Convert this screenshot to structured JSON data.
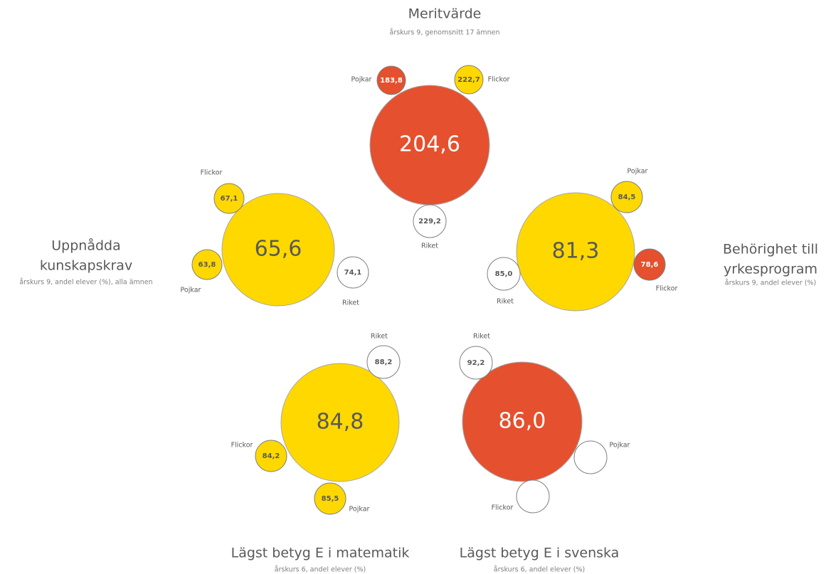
{
  "groups": [
    {
      "title": [
        "Meritvärde"
      ],
      "subtitle": "årskurs 9, genomsnitt 17 ämnen",
      "main": {
        "value": "204,6",
        "color": "#e5502e"
      },
      "satellites": [
        {
          "label": "Pojkar",
          "value": "183,8",
          "color": "#e5502e"
        },
        {
          "label": "Flickor",
          "value": "222,7",
          "color": "#ffd800"
        },
        {
          "label": "Riket",
          "value": "229,2",
          "color": "#ffffff"
        }
      ]
    },
    {
      "title": [
        "Uppnådda",
        "kunskapskrav"
      ],
      "subtitle": "årskurs 9, andel elever (%), alla ämnen",
      "main": {
        "value": "65,6",
        "color": "#ffd800"
      },
      "satellites": [
        {
          "label": "Flickor",
          "value": "67,1",
          "color": "#ffd800"
        },
        {
          "label": "Pojkar",
          "value": "63,8",
          "color": "#ffd800"
        },
        {
          "label": "Riket",
          "value": "74,1",
          "color": "#ffffff"
        }
      ]
    },
    {
      "title": [
        "Behörighet till",
        "yrkesprogram"
      ],
      "subtitle": "årskurs 9, andel elever (%)",
      "main": {
        "value": "81,3",
        "color": "#ffd800"
      },
      "satellites": [
        {
          "label": "Pojkar",
          "value": "84,5",
          "color": "#ffd800"
        },
        {
          "label": "Flickor",
          "value": "78,6",
          "color": "#e5502e"
        },
        {
          "label": "Riket",
          "value": "85,0",
          "color": "#ffffff"
        }
      ]
    },
    {
      "title": [
        "Lägst betyg E i matematik"
      ],
      "subtitle": "årskurs  6, andel elever (%)",
      "main": {
        "value": "84,8",
        "color": "#ffd800"
      },
      "satellites": [
        {
          "label": "Riket",
          "value": "88,2",
          "color": "#ffffff"
        },
        {
          "label": "Flickor",
          "value": "84,2",
          "color": "#ffd800"
        },
        {
          "label": "Pojkar",
          "value": "85,5",
          "color": "#ffd800"
        }
      ]
    },
    {
      "title": [
        "Lägst betyg E i svenska"
      ],
      "subtitle": "årskurs 6, andel elever (%)",
      "main": {
        "value": "86,0",
        "color": "#e5502e"
      },
      "satellites": [
        {
          "label": "Riket",
          "value": "92,2",
          "color": "#ffffff"
        },
        {
          "label": "Pojkar",
          "color": "#ffffff"
        },
        {
          "label": "Flickor",
          "color": "#ffffff"
        }
      ]
    }
  ]
}
